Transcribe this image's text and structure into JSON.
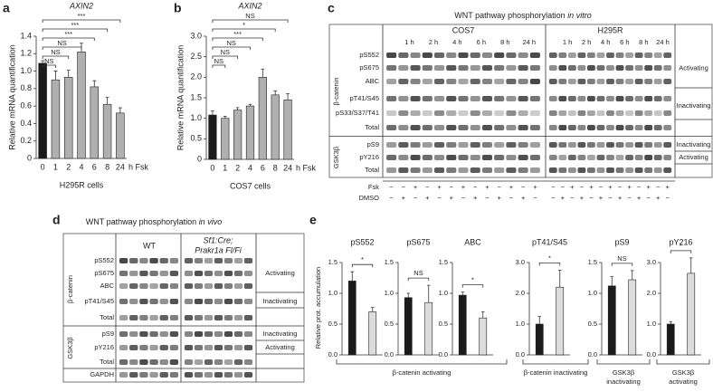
{
  "panel_letters": [
    "a",
    "b",
    "c",
    "d",
    "e"
  ],
  "chart_data": [
    {
      "type": "bar",
      "title": "AXIN2",
      "title_style": "italic",
      "ylabel": "Relative mRNA quantification",
      "xlabel": "H295R cells",
      "x_unit": "h Fsk",
      "categories": [
        "0",
        "1",
        "2",
        "4",
        "6",
        "8",
        "24"
      ],
      "values": [
        1.09,
        0.9,
        0.93,
        1.22,
        0.82,
        0.62,
        0.52
      ],
      "errors": [
        0.03,
        0.1,
        0.08,
        0.1,
        0.07,
        0.08,
        0.06
      ],
      "colors": [
        "#1a1a1a",
        "#b0b0b0",
        "#b0b0b0",
        "#b0b0b0",
        "#b0b0b0",
        "#b0b0b0",
        "#b0b0b0"
      ],
      "significance": [
        null,
        "NS",
        "NS",
        "NS",
        "***",
        "***",
        "***"
      ],
      "ylim": [
        0,
        1.4
      ],
      "yticks": [
        0,
        0.2,
        0.4,
        0.6,
        0.8,
        {
          "value": 1,
          "label": "1.0"
        },
        1.2,
        1.4
      ]
    },
    {
      "type": "bar",
      "title": "AXIN2",
      "title_style": "italic",
      "ylabel": "Relative mRNA quantification",
      "xlabel": "COS7 cells",
      "x_unit": "h Fsk",
      "categories": [
        "0",
        "1",
        "2",
        "4",
        "6",
        "8",
        "24"
      ],
      "values": [
        1.08,
        1.0,
        1.2,
        1.3,
        2.0,
        1.57,
        1.45
      ],
      "errors": [
        0.1,
        0.05,
        0.06,
        0.04,
        0.2,
        0.1,
        0.15
      ],
      "colors": [
        "#1a1a1a",
        "#b0b0b0",
        "#b0b0b0",
        "#b0b0b0",
        "#b0b0b0",
        "#b0b0b0",
        "#b0b0b0"
      ],
      "significance": [
        null,
        "NS",
        "NS",
        "NS",
        "***",
        "*",
        "NS"
      ],
      "ylim": [
        0,
        3
      ],
      "yticks": [
        0,
        0.5,
        {
          "value": 1,
          "label": "1.0"
        },
        1.5,
        {
          "value": 2,
          "label": "2.0"
        },
        2.5,
        {
          "value": 3,
          "label": "3.0"
        }
      ]
    },
    {
      "type": "bar",
      "title": "pS552",
      "categories": [
        null,
        null
      ],
      "values": [
        1.2,
        0.7
      ],
      "errors": [
        0.15,
        0.07
      ],
      "colors": [
        "#1a1a1a",
        "#dcdcdc"
      ],
      "significance": "*",
      "ylim": [
        0,
        1.5
      ],
      "yticks": [
        {
          "value": 0,
          "label": "0.0"
        },
        0.5,
        {
          "value": 1,
          "label": "1.0"
        },
        1.5
      ]
    },
    {
      "type": "bar",
      "title": "pS675",
      "categories": [
        null,
        null
      ],
      "values": [
        0.93,
        0.85
      ],
      "errors": [
        0.07,
        0.28
      ],
      "colors": [
        "#1a1a1a",
        "#dcdcdc"
      ],
      "significance": "NS",
      "ylim": [
        0,
        1.5
      ],
      "yticks": [
        {
          "value": 0,
          "label": "0.0"
        },
        0.5,
        {
          "value": 1,
          "label": "1.0"
        },
        1.5
      ]
    },
    {
      "type": "bar",
      "title": "ABC",
      "categories": [
        null,
        null
      ],
      "values": [
        0.97,
        0.6
      ],
      "errors": [
        0.05,
        0.1
      ],
      "colors": [
        "#1a1a1a",
        "#dcdcdc"
      ],
      "significance": "*",
      "ylim": [
        0,
        1.5
      ],
      "yticks": [
        {
          "value": 0,
          "label": "0.0"
        },
        0.5,
        {
          "value": 1,
          "label": "1.0"
        },
        1.5
      ]
    },
    {
      "type": "bar",
      "title": "pT41/S45",
      "categories": [
        null,
        null
      ],
      "values": [
        1.0,
        2.2
      ],
      "errors": [
        0.25,
        0.55
      ],
      "colors": [
        "#1a1a1a",
        "#dcdcdc"
      ],
      "significance": "*",
      "ylim": [
        0,
        3
      ],
      "yticks": [
        {
          "value": 0,
          "label": "0.0"
        },
        {
          "value": 1,
          "label": "1.0"
        },
        {
          "value": 2,
          "label": "2.0"
        },
        {
          "value": 3,
          "label": "3.0"
        }
      ]
    },
    {
      "type": "bar",
      "title": "pS9",
      "categories": [
        null,
        null
      ],
      "values": [
        1.12,
        1.22
      ],
      "errors": [
        0.15,
        0.15
      ],
      "colors": [
        "#1a1a1a",
        "#dcdcdc"
      ],
      "significance": "NS",
      "ylim": [
        0,
        1.5
      ],
      "yticks": [
        {
          "value": 0,
          "label": "0.0"
        },
        0.5,
        {
          "value": 1,
          "label": "1.0"
        },
        1.5
      ]
    },
    {
      "type": "bar",
      "title": "pY216",
      "categories": [
        null,
        null
      ],
      "values": [
        1.0,
        2.65
      ],
      "errors": [
        0.08,
        0.5
      ],
      "colors": [
        "#1a1a1a",
        "#dcdcdc"
      ],
      "significance": "*",
      "ylim": [
        0,
        3
      ],
      "yticks": [
        {
          "value": 0,
          "label": "0.0"
        },
        {
          "value": 1,
          "label": "1.0"
        },
        {
          "value": 2,
          "label": "2.0"
        },
        {
          "value": 3,
          "label": "3.0"
        }
      ]
    }
  ],
  "panel_e": {
    "ylabel": "Relative prot. accumulation",
    "groups": [
      {
        "lines": [
          "β-catenin activating"
        ]
      },
      {
        "lines": [
          "β-catenin inactivating"
        ]
      },
      {
        "lines": [
          "GSK3β",
          "inactivating"
        ]
      },
      {
        "lines": [
          "GSK3β",
          "activating"
        ]
      }
    ]
  },
  "blot_c": {
    "title": "WNT pathway phosphorylation ",
    "title_em": "in vitro",
    "sides": [
      "COS7",
      "H295R"
    ],
    "times": [
      "1 h",
      "2 h",
      "4 h",
      "6 h",
      "8 h",
      "24 h"
    ],
    "groups": [
      {
        "label": "β-catenin",
        "rows": [
          "pS552",
          "pS675",
          "ABC",
          "pT41/S45",
          "pS33/S37/T41",
          "Total"
        ]
      },
      {
        "label": "GSK3β",
        "rows": [
          "pS9",
          "pY216",
          "Total"
        ]
      }
    ],
    "effects": [
      "Activating",
      "Inactivating",
      "Inactivating",
      "Activating"
    ],
    "treatments": [
      {
        "label": "Fsk",
        "signs": [
          "−",
          "−",
          "+",
          "−",
          "+",
          "−",
          "+",
          "−",
          "+",
          "−",
          "+",
          "−",
          "+"
        ]
      },
      {
        "label": "DMSO",
        "signs": [
          "−",
          "+",
          "−",
          "+",
          "−",
          "+",
          "−",
          "+",
          "−",
          "+",
          "−",
          "+",
          "−"
        ]
      }
    ]
  },
  "blot_d": {
    "title": "WNT pathway phosphorylation ",
    "title_em": "in vivo",
    "sides": [
      [
        "WT"
      ],
      [
        "Sf1:Cre;",
        "Prakr1a Fl/Fi"
      ]
    ],
    "groups": [
      {
        "label": "β-catenin",
        "rows": [
          "pS552",
          "pS675",
          "ABC",
          "pT41/S45",
          "Total"
        ]
      },
      {
        "label": "GSK3β",
        "rows": [
          "pS9",
          "pY216",
          "Total"
        ]
      }
    ],
    "loading": "GAPDH",
    "effects": [
      "Activating",
      "Inactivating",
      "Inactivating",
      "Activating"
    ]
  }
}
